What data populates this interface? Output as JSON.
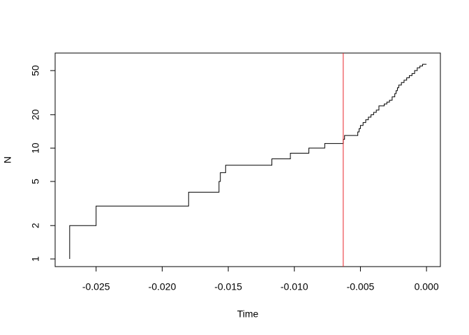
{
  "chart_data": {
    "type": "step",
    "x_label": "Time",
    "y_label": "N",
    "log_y": true,
    "xlim": [
      -0.0281,
      0.00105
    ],
    "ylim": [
      0.853,
      72
    ],
    "xticks": [
      -0.025,
      {
        "value": -0.02,
        "label": "-0.020"
      },
      -0.015,
      {
        "value": -0.01,
        "label": "-0.010"
      },
      -0.005,
      {
        "value": 0,
        "label": "0.000"
      }
    ],
    "yticks": [
      1,
      2,
      5,
      10,
      20,
      50
    ],
    "series": [
      {
        "color": "#000000",
        "x": [
          -0.027,
          -0.027,
          -0.025,
          -0.018,
          -0.0157,
          -0.0156,
          -0.0152,
          -0.0117,
          -0.0103,
          -0.0089,
          -0.0077,
          -0.0063,
          -0.0062,
          -0.0052,
          -0.0051,
          -0.005,
          -0.0048,
          -0.0046,
          -0.0044,
          -0.0042,
          -0.004,
          -0.0038,
          -0.0036,
          -0.0032,
          -0.003,
          -0.0028,
          -0.0026,
          -0.0024,
          -0.0023,
          -0.0022,
          -0.0021,
          -0.0019,
          -0.0017,
          -0.0015,
          -0.0013,
          -0.0011,
          -0.0009,
          -0.0007,
          -0.0005,
          -0.0003,
          0
        ],
        "values": [
          1,
          2,
          3,
          4,
          5,
          6,
          7,
          8,
          9,
          10,
          11,
          12,
          13,
          14,
          15,
          16,
          17,
          18,
          19,
          20,
          21,
          22,
          24,
          25,
          26,
          27,
          29,
          31,
          33,
          35,
          37,
          39,
          41,
          43,
          45,
          47,
          50,
          53,
          55,
          57,
          57
        ]
      }
    ],
    "vline": {
      "x": -0.0063,
      "color": "#e8262b"
    }
  }
}
